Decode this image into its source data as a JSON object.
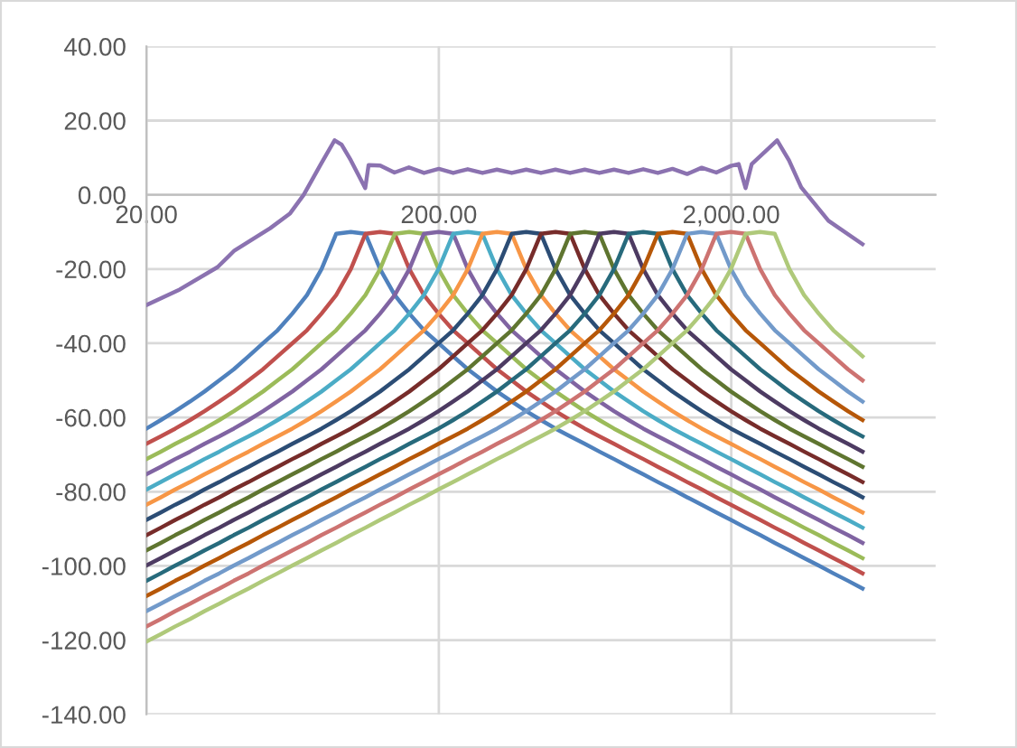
{
  "chart_data": {
    "type": "line",
    "log": "x",
    "grid": true,
    "marker": "none",
    "line_style": "solid",
    "xlim": [
      20,
      10000
    ],
    "xticks": [
      {
        "value": 20,
        "label": "20.00"
      },
      {
        "value": 200,
        "label": "200.00"
      },
      {
        "value": 2000,
        "label": "2,000.00"
      }
    ],
    "ylim": [
      -140,
      40
    ],
    "yticks": [
      {
        "value": 40,
        "label": "40.00"
      },
      {
        "value": 20,
        "label": "20.00"
      },
      {
        "value": 0,
        "label": "0.00"
      },
      {
        "value": -20,
        "label": "-20.00"
      },
      {
        "value": -40,
        "label": "-40.00"
      },
      {
        "value": -60,
        "label": "-60.00"
      },
      {
        "value": -80,
        "label": "-80.00"
      },
      {
        "value": -100,
        "label": "-100.00"
      },
      {
        "value": -120,
        "label": "-120.00"
      },
      {
        "value": -140,
        "label": "-140.00"
      }
    ],
    "x": [
      20,
      22.4,
      25.1,
      28.2,
      31.6,
      35.5,
      39.8,
      44.7,
      50.1,
      56.2,
      63.1,
      70.8,
      79.4,
      89.1,
      100,
      112.2,
      125.9,
      141.3,
      158.5,
      177.8,
      199.5,
      223.9,
      251.2,
      281.8,
      316.2,
      354.8,
      398.1,
      446.7,
      501.2,
      562.3,
      631,
      707.9,
      794.3,
      891.3,
      1000,
      1122,
      1259,
      1413,
      1585,
      1778,
      1995,
      2239,
      2512,
      2818,
      3162,
      3548,
      3981,
      4467,
      5012,
      5623
    ],
    "series": [
      {
        "color": "#4f81bd",
        "values": [
          -63,
          -60.7,
          -58.3,
          -55.7,
          -53,
          -50,
          -47,
          -43.5,
          -40,
          -36.5,
          -32,
          -27,
          -20,
          -10.5,
          -10,
          -10.5,
          -20,
          -27,
          -32,
          -36.5,
          -40,
          -43.5,
          -47,
          -50,
          -53,
          -55.7,
          -58.3,
          -60.7,
          -63,
          -65.1,
          -67.1,
          -69.2,
          -71.2,
          -73.3,
          -75.3,
          -77.4,
          -79.4,
          -81.5,
          -83.5,
          -85.6,
          -87.6,
          -89.7,
          -91.7,
          -93.8,
          -95.8,
          -97.9,
          -99.9,
          -102,
          -104,
          -106.1
        ]
      },
      {
        "color": "#c0504d",
        "values": [
          -67.1,
          -65.1,
          -63,
          -60.7,
          -58.3,
          -55.7,
          -53,
          -50,
          -47,
          -43.5,
          -40,
          -36.5,
          -32,
          -27,
          -20,
          -10.5,
          -10,
          -10.5,
          -20,
          -27,
          -32,
          -36.5,
          -40,
          -43.5,
          -47,
          -50,
          -53,
          -55.7,
          -58.3,
          -60.7,
          -63,
          -65.1,
          -67.1,
          -69.2,
          -71.2,
          -73.3,
          -75.3,
          -77.4,
          -79.4,
          -81.5,
          -83.5,
          -85.6,
          -87.6,
          -89.7,
          -91.7,
          -93.8,
          -95.8,
          -97.9,
          -99.9,
          -102
        ]
      },
      {
        "color": "#9bbb59",
        "values": [
          -71.2,
          -69.2,
          -67.1,
          -65.1,
          -63,
          -60.7,
          -58.3,
          -55.7,
          -53,
          -50,
          -47,
          -43.5,
          -40,
          -36.5,
          -32,
          -27,
          -20,
          -10.5,
          -10,
          -10.5,
          -20,
          -27,
          -32,
          -36.5,
          -40,
          -43.5,
          -47,
          -50,
          -53,
          -55.7,
          -58.3,
          -60.7,
          -63,
          -65.1,
          -67.1,
          -69.2,
          -71.2,
          -73.3,
          -75.3,
          -77.4,
          -79.4,
          -81.5,
          -83.5,
          -85.6,
          -87.6,
          -89.7,
          -91.7,
          -93.8,
          -95.8,
          -97.9
        ]
      },
      {
        "color": "#8064a2",
        "values": [
          -75.3,
          -73.3,
          -71.2,
          -69.2,
          -67.1,
          -65.1,
          -63,
          -60.7,
          -58.3,
          -55.7,
          -53,
          -50,
          -47,
          -43.5,
          -40,
          -36.5,
          -32,
          -27,
          -20,
          -10.5,
          -10,
          -10.5,
          -20,
          -27,
          -32,
          -36.5,
          -40,
          -43.5,
          -47,
          -50,
          -53,
          -55.7,
          -58.3,
          -60.7,
          -63,
          -65.1,
          -67.1,
          -69.2,
          -71.2,
          -73.3,
          -75.3,
          -77.4,
          -79.4,
          -81.5,
          -83.5,
          -85.6,
          -87.6,
          -89.7,
          -91.7,
          -93.8
        ]
      },
      {
        "color": "#4bacc6",
        "values": [
          -79.4,
          -77.4,
          -75.3,
          -73.3,
          -71.2,
          -69.2,
          -67.1,
          -65.1,
          -63,
          -60.7,
          -58.3,
          -55.7,
          -53,
          -50,
          -47,
          -43.5,
          -40,
          -36.5,
          -32,
          -27,
          -20,
          -10.5,
          -10,
          -10.5,
          -20,
          -27,
          -32,
          -36.5,
          -40,
          -43.5,
          -47,
          -50,
          -53,
          -55.7,
          -58.3,
          -60.7,
          -63,
          -65.1,
          -67.1,
          -69.2,
          -71.2,
          -73.3,
          -75.3,
          -77.4,
          -79.4,
          -81.5,
          -83.5,
          -85.6,
          -87.6,
          -89.7
        ]
      },
      {
        "color": "#f79646",
        "values": [
          -83.5,
          -81.5,
          -79.4,
          -77.4,
          -75.3,
          -73.3,
          -71.2,
          -69.2,
          -67.1,
          -65.1,
          -63,
          -60.7,
          -58.3,
          -55.7,
          -53,
          -50,
          -47,
          -43.5,
          -40,
          -36.5,
          -32,
          -27,
          -20,
          -10.5,
          -10,
          -10.5,
          -20,
          -27,
          -32,
          -36.5,
          -40,
          -43.5,
          -47,
          -50,
          -53,
          -55.7,
          -58.3,
          -60.7,
          -63,
          -65.1,
          -67.1,
          -69.2,
          -71.2,
          -73.3,
          -75.3,
          -77.4,
          -79.4,
          -81.5,
          -83.5,
          -85.6
        ]
      },
      {
        "color": "#2c4d75",
        "values": [
          -87.6,
          -85.6,
          -83.5,
          -81.5,
          -79.4,
          -77.4,
          -75.3,
          -73.3,
          -71.2,
          -69.2,
          -67.1,
          -65.1,
          -63,
          -60.7,
          -58.3,
          -55.7,
          -53,
          -50,
          -47,
          -43.5,
          -40,
          -36.5,
          -32,
          -27,
          -20,
          -10.5,
          -10,
          -10.5,
          -20,
          -27,
          -32,
          -36.5,
          -40,
          -43.5,
          -47,
          -50,
          -53,
          -55.7,
          -58.3,
          -60.7,
          -63,
          -65.1,
          -67.1,
          -69.2,
          -71.2,
          -73.3,
          -75.3,
          -77.4,
          -79.4,
          -81.5
        ]
      },
      {
        "color": "#772c2a",
        "values": [
          -91.7,
          -89.7,
          -87.6,
          -85.6,
          -83.5,
          -81.5,
          -79.4,
          -77.4,
          -75.3,
          -73.3,
          -71.2,
          -69.2,
          -67.1,
          -65.1,
          -63,
          -60.7,
          -58.3,
          -55.7,
          -53,
          -50,
          -47,
          -43.5,
          -40,
          -36.5,
          -32,
          -27,
          -20,
          -10.5,
          -10,
          -10.5,
          -20,
          -27,
          -32,
          -36.5,
          -40,
          -43.5,
          -47,
          -50,
          -53,
          -55.7,
          -58.3,
          -60.7,
          -63,
          -65.1,
          -67.1,
          -69.2,
          -71.2,
          -73.3,
          -75.3,
          -77.4
        ]
      },
      {
        "color": "#5f7530",
        "values": [
          -95.8,
          -93.8,
          -91.7,
          -89.7,
          -87.6,
          -85.6,
          -83.5,
          -81.5,
          -79.4,
          -77.4,
          -75.3,
          -73.3,
          -71.2,
          -69.2,
          -67.1,
          -65.1,
          -63,
          -60.7,
          -58.3,
          -55.7,
          -53,
          -50,
          -47,
          -43.5,
          -40,
          -36.5,
          -32,
          -27,
          -20,
          -10.5,
          -10,
          -10.5,
          -20,
          -27,
          -32,
          -36.5,
          -40,
          -43.5,
          -47,
          -50,
          -53,
          -55.7,
          -58.3,
          -60.7,
          -63,
          -65.1,
          -67.1,
          -69.2,
          -71.2,
          -73.3
        ]
      },
      {
        "color": "#4d3b62",
        "values": [
          -99.9,
          -97.9,
          -95.8,
          -93.8,
          -91.7,
          -89.7,
          -87.6,
          -85.6,
          -83.5,
          -81.5,
          -79.4,
          -77.4,
          -75.3,
          -73.3,
          -71.2,
          -69.2,
          -67.1,
          -65.1,
          -63,
          -60.7,
          -58.3,
          -55.7,
          -53,
          -50,
          -47,
          -43.5,
          -40,
          -36.5,
          -32,
          -27,
          -20,
          -10.5,
          -10,
          -10.5,
          -20,
          -27,
          -32,
          -36.5,
          -40,
          -43.5,
          -47,
          -50,
          -53,
          -55.7,
          -58.3,
          -60.7,
          -63,
          -65.1,
          -67.1,
          -69.2
        ]
      },
      {
        "color": "#276a7c",
        "values": [
          -104,
          -102,
          -99.9,
          -97.9,
          -95.8,
          -93.8,
          -91.7,
          -89.7,
          -87.6,
          -85.6,
          -83.5,
          -81.5,
          -79.4,
          -77.4,
          -75.3,
          -73.3,
          -71.2,
          -69.2,
          -67.1,
          -65.1,
          -63,
          -60.7,
          -58.3,
          -55.7,
          -53,
          -50,
          -47,
          -43.5,
          -40,
          -36.5,
          -32,
          -27,
          -20,
          -10.5,
          -10,
          -10.5,
          -20,
          -27,
          -32,
          -36.5,
          -40,
          -43.5,
          -47,
          -50,
          -53,
          -55.7,
          -58.3,
          -60.7,
          -63,
          -65.1
        ]
      },
      {
        "color": "#b65708",
        "values": [
          -108.1,
          -106.1,
          -104,
          -102,
          -99.9,
          -97.9,
          -95.8,
          -93.8,
          -91.7,
          -89.7,
          -87.6,
          -85.6,
          -83.5,
          -81.5,
          -79.4,
          -77.4,
          -75.3,
          -73.3,
          -71.2,
          -69.2,
          -67.1,
          -65.1,
          -63,
          -60.7,
          -58.3,
          -55.7,
          -53,
          -50,
          -47,
          -43.5,
          -40,
          -36.5,
          -32,
          -27,
          -20,
          -10.5,
          -10,
          -10.5,
          -20,
          -27,
          -32,
          -36.5,
          -40,
          -43.5,
          -47,
          -50,
          -53,
          -55.7,
          -58.3,
          -60.7
        ]
      },
      {
        "color": "#729aca",
        "values": [
          -112.2,
          -110.2,
          -108.1,
          -106.1,
          -104,
          -102,
          -99.9,
          -97.9,
          -95.8,
          -93.8,
          -91.7,
          -89.7,
          -87.6,
          -85.6,
          -83.5,
          -81.5,
          -79.4,
          -77.4,
          -75.3,
          -73.3,
          -71.2,
          -69.2,
          -67.1,
          -65.1,
          -63,
          -60.7,
          -58.3,
          -55.7,
          -53,
          -50,
          -47,
          -43.5,
          -40,
          -36.5,
          -32,
          -27,
          -20,
          -10.5,
          -10,
          -10.5,
          -20,
          -27,
          -32,
          -36.5,
          -40,
          -43.5,
          -47,
          -50,
          -53,
          -55.7
        ]
      },
      {
        "color": "#cd7371",
        "values": [
          -116.3,
          -114.3,
          -112.2,
          -110.2,
          -108.1,
          -106.1,
          -104,
          -102,
          -99.9,
          -97.9,
          -95.8,
          -93.8,
          -91.7,
          -89.7,
          -87.6,
          -85.6,
          -83.5,
          -81.5,
          -79.4,
          -77.4,
          -75.3,
          -73.3,
          -71.2,
          -69.2,
          -67.1,
          -65.1,
          -63,
          -60.7,
          -58.3,
          -55.7,
          -53,
          -50,
          -47,
          -43.5,
          -40,
          -36.5,
          -32,
          -27,
          -20,
          -10.5,
          -10,
          -10.5,
          -20,
          -27,
          -32,
          -36.5,
          -40,
          -43.5,
          -47,
          -50
        ]
      },
      {
        "color": "#afc97a",
        "values": [
          -120.4,
          -118.4,
          -116.3,
          -114.3,
          -112.2,
          -110.2,
          -108.1,
          -106.1,
          -104,
          -102,
          -99.9,
          -97.9,
          -95.8,
          -93.8,
          -91.7,
          -89.7,
          -87.6,
          -85.6,
          -83.5,
          -81.5,
          -79.4,
          -77.4,
          -75.3,
          -73.3,
          -71.2,
          -69.2,
          -67.1,
          -65.1,
          -63,
          -60.7,
          -58.3,
          -55.7,
          -53,
          -50,
          -47,
          -43.5,
          -40,
          -36.5,
          -32,
          -27,
          -20,
          -10.5,
          -10,
          -10.5,
          -20,
          -27,
          -32,
          -36.5,
          -40,
          -43.5
        ]
      },
      {
        "color": "#8b72b0",
        "x": [
          20,
          26,
          35,
          40,
          53,
          62,
          69,
          79,
          88,
          93,
          100,
          112,
          115,
          126,
          141,
          158,
          178,
          200,
          224,
          251,
          282,
          316,
          355,
          398,
          447,
          501,
          562,
          631,
          708,
          794,
          891,
          1000,
          1122,
          1259,
          1413,
          1585,
          1778,
          1995,
          2120,
          2239,
          2350,
          2600,
          2870,
          3150,
          3470,
          4300,
          5620
        ],
        "values": [
          -29.7,
          -25.5,
          -19.5,
          -15,
          -9,
          -5,
          0,
          8.3,
          14.7,
          13.5,
          9.3,
          1.8,
          8,
          7.9,
          6,
          7.4,
          5.9,
          7,
          5.9,
          6.9,
          5.9,
          6.8,
          5.9,
          6.8,
          5.9,
          6.8,
          5.9,
          6.8,
          5.9,
          6.8,
          5.9,
          6.9,
          5.9,
          7,
          5.6,
          7.3,
          6,
          7.8,
          8.3,
          1.8,
          8.3,
          11.5,
          14.7,
          9.3,
          2,
          -7,
          -13.3
        ]
      }
    ]
  }
}
